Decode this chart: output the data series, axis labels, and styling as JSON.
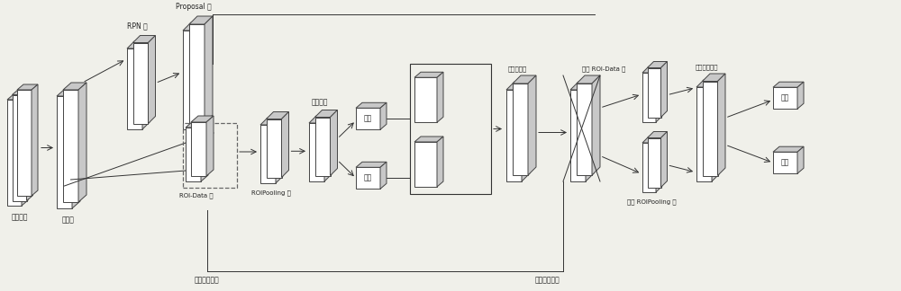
{
  "bg_color": "#f0f0ea",
  "block_face_color": "#c8c8c8",
  "block_edge_color": "#444444",
  "block_white_color": "#ffffff",
  "line_color": "#333333",
  "dashed_color": "#666666",
  "text_color": "#222222",
  "labels": {
    "training_image": "训练图像",
    "conv_layer": "卷积层",
    "rpn_layer": "RPN 层",
    "proposal_layer": "Proposal 层",
    "roi_data_layer": "ROI-Data 层",
    "roipooling_layer": "ROIPooling 层",
    "fc_layer": "全连接层",
    "cls": "分类",
    "reg": "回归",
    "ground_truth": "实际坐标信息",
    "cascade_proc": "级联处理层",
    "cascade_roi_data": "级联 ROI-Data 层",
    "cascade_fc": "级联全连接层",
    "cascade_roipooling": "级联 ROIPooling 层",
    "cascade_cls": "分类",
    "cascade_reg": "回归",
    "ground_truth2": "实际坐标信息"
  }
}
